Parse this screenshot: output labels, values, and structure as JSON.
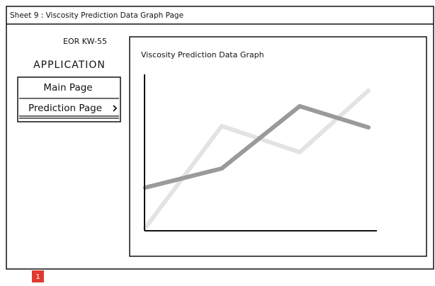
{
  "header": {
    "title": "Sheet 9 : Viscosity Prediction Data Graph Page"
  },
  "sidebar": {
    "brand": "EOR KW-55",
    "app_name": "APPLICATION",
    "menu": [
      "Main Page",
      "Prediction Page"
    ]
  },
  "graph_panel": {
    "title": "Viscosity Prediction Data Graph"
  },
  "footer": {
    "badge": "1"
  }
}
